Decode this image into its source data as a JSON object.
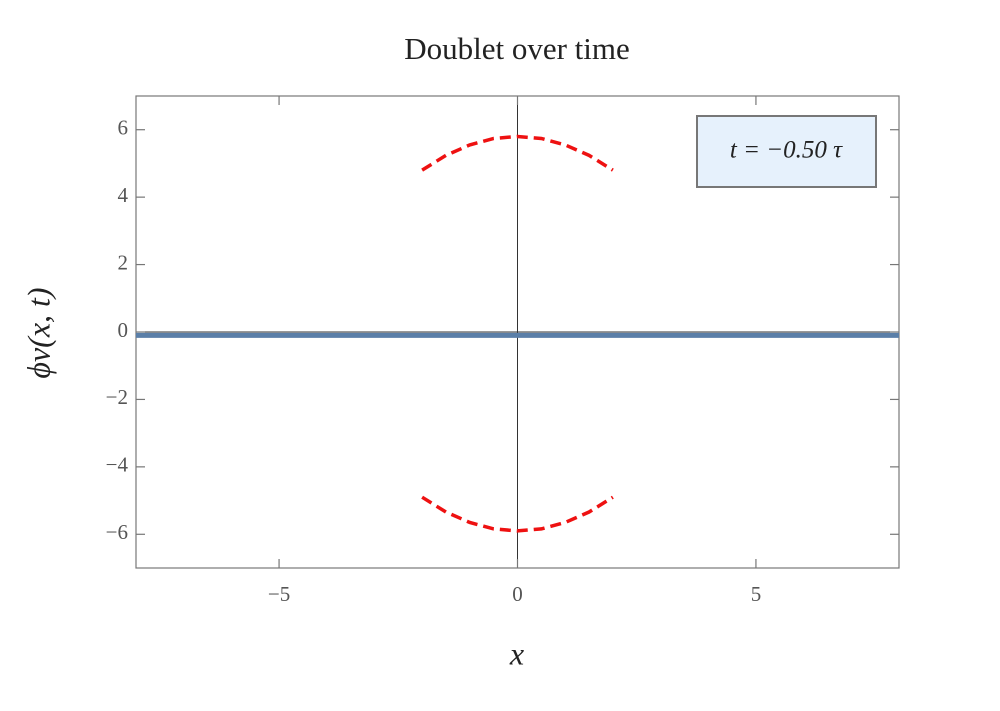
{
  "chart_data": {
    "type": "line",
    "title": "Doublet over time",
    "xlabel": "x",
    "ylabel": "ϕv(x, t)",
    "annotation": "t = −0.50 τ",
    "xlim": [
      -8,
      8
    ],
    "ylim": [
      -7,
      7
    ],
    "xticks": [
      {
        "value": -5,
        "label": "−5"
      },
      0,
      5
    ],
    "yticks": [
      {
        "value": -6,
        "label": "−6"
      },
      {
        "value": -4,
        "label": "−4"
      },
      {
        "value": -2,
        "label": "−2"
      },
      0,
      2,
      4,
      6
    ],
    "series": [
      {
        "color": "#5b7fa8",
        "dashed": false,
        "x": [
          -8,
          8
        ],
        "values": [
          -0.1,
          -0.1
        ]
      },
      {
        "color": "#ee1111",
        "dashed": true,
        "x": [
          -2,
          -1.5,
          -1,
          -0.5,
          0,
          0.5,
          1,
          1.5,
          2
        ],
        "values": [
          4.8,
          5.24,
          5.55,
          5.74,
          5.8,
          5.74,
          5.55,
          5.24,
          4.8
        ]
      },
      {
        "color": "#ee1111",
        "dashed": true,
        "x": [
          -2,
          -1.5,
          -1,
          -0.5,
          0,
          0.5,
          1,
          1.5,
          2
        ],
        "values": [
          -4.9,
          -5.34,
          -5.65,
          -5.84,
          -5.9,
          -5.84,
          -5.65,
          -5.34,
          -4.9
        ]
      }
    ]
  }
}
